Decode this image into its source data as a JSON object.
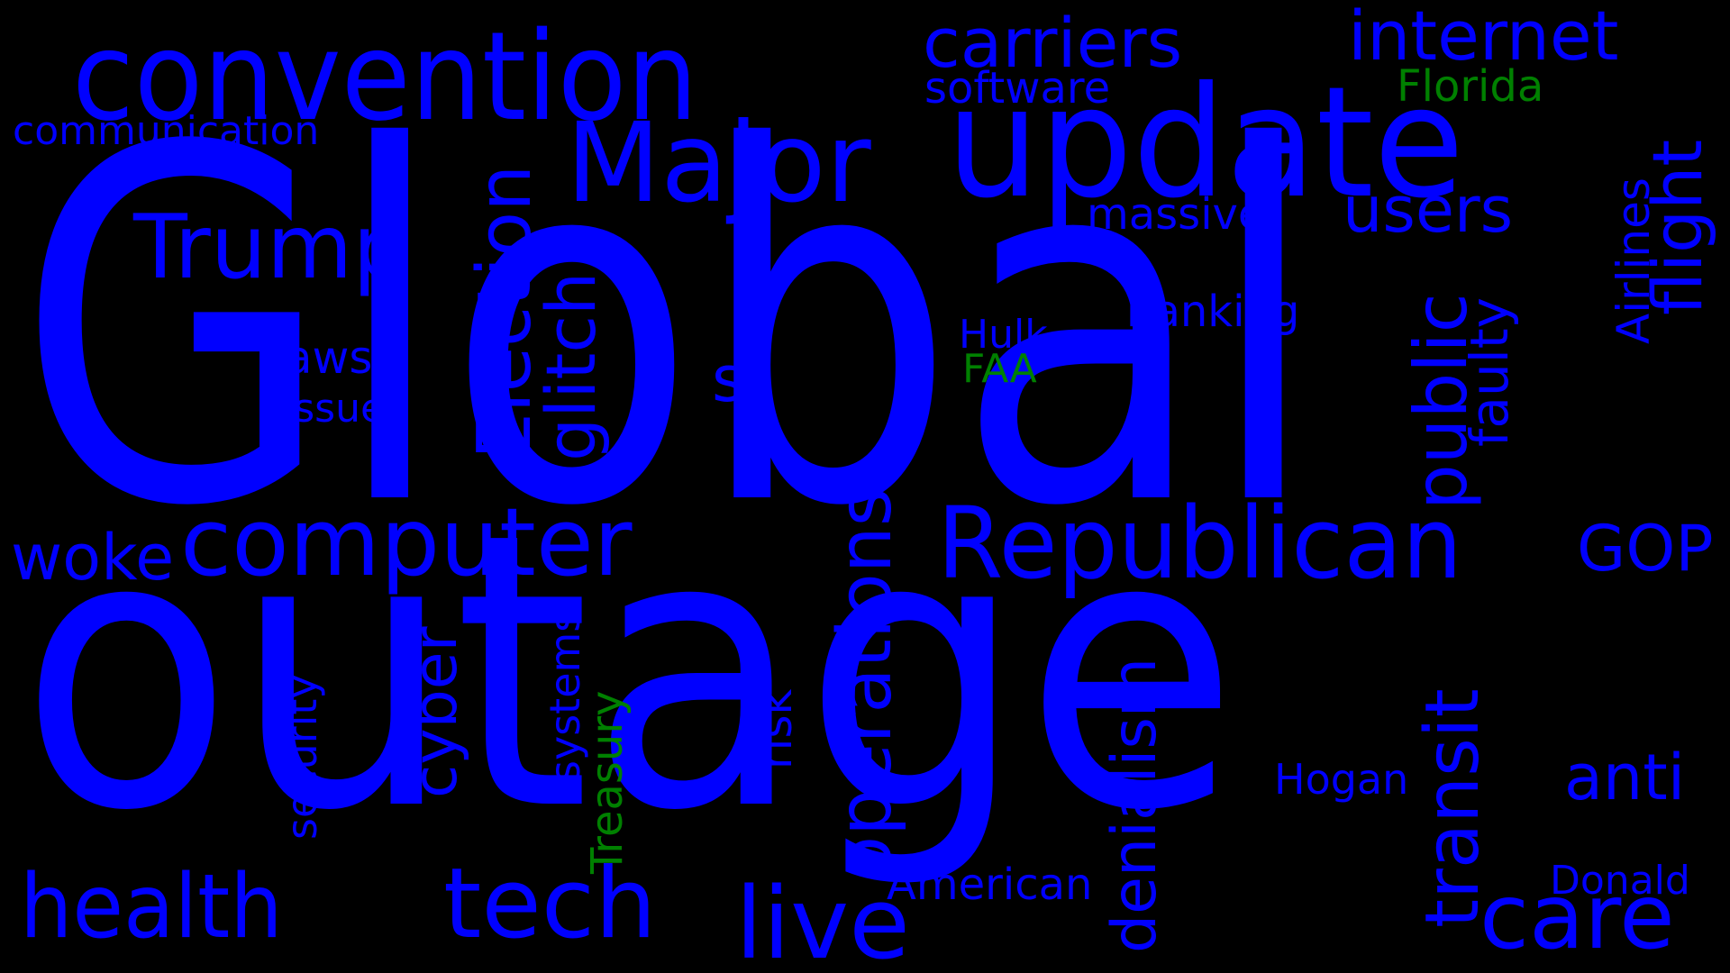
{
  "words": {
    "global": "Global",
    "outage": "outage",
    "convention": "convention",
    "update": "update",
    "major": "Major",
    "republican": "Republican",
    "computer": "computer",
    "trump": "Trump",
    "health": "health",
    "tech": "tech",
    "live": "live",
    "care": "care",
    "carriers": "carriers",
    "internet": "internet",
    "users": "users",
    "woke": "woke",
    "gop": "GOP",
    "anti": "anti",
    "software": "software",
    "florida": "Florida",
    "communication": "communication",
    "massive": "massive",
    "banking": "banking",
    "laws": "laws",
    "issue": "issue",
    "s": "s",
    "hulk": "Hulk",
    "faa": "FAA",
    "hogan": "Hogan",
    "american": "American",
    "donald": "Donald",
    "election": "Election",
    "glitch": "glitch",
    "public": "public",
    "faulty": "faulty",
    "airlines": "Airlines",
    "flight": "flight",
    "operations": "operations",
    "cyber": "cyber",
    "security": "security",
    "systems": "systems",
    "treasury": "Treasury",
    "risk": "risk",
    "denialism": "denialism",
    "transit": "transit"
  },
  "colors": {
    "background": "#000000",
    "primary_word": "#0000ff",
    "accent_word": "#008000"
  }
}
